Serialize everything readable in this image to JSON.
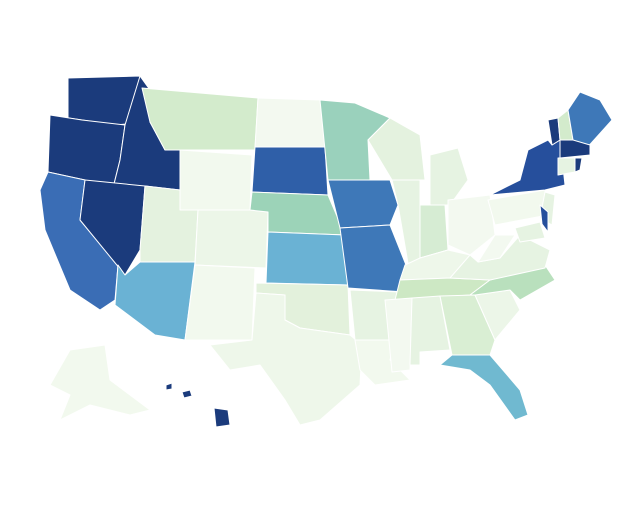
{
  "map": {
    "background": "#ffffff",
    "border_color": "#ffffff",
    "regions": [
      {
        "color": "#1b3b7c"
      },
      {
        "color": "#1b3b7c"
      },
      {
        "color": "#1b3b7c"
      },
      {
        "color": "#3a6db5"
      },
      {
        "color": "#1b3b7c"
      },
      {
        "color": "#d3ebcc"
      },
      {
        "color": "#f2f9ee"
      },
      {
        "color": "#e4f2df"
      },
      {
        "color": "#6ab2d4"
      },
      {
        "color": "#ecf6e8"
      },
      {
        "color": "#f2f9ee"
      },
      {
        "color": "#f3f9f0"
      },
      {
        "color": "#2f5fa8"
      },
      {
        "color": "#9cd3b8"
      },
      {
        "color": "#6ab2d4"
      },
      {
        "color": "#e3f1dc"
      },
      {
        "color": "#eef7ea"
      },
      {
        "color": "#9ad1bc"
      },
      {
        "color": "#3e78b8"
      },
      {
        "color": "#3e78b8"
      },
      {
        "color": "#e6f3e2"
      },
      {
        "color": "#f2f9ee"
      },
      {
        "color": "#e4f2df"
      },
      {
        "color": "#e6f3e2"
      },
      {
        "color": "#e6f3e2"
      },
      {
        "color": "#d6ecd3"
      },
      {
        "color": "#f3f9f0"
      },
      {
        "color": "#eef7ea"
      },
      {
        "color": "#cde8c4"
      },
      {
        "color": "#f3f9f0"
      },
      {
        "color": "#e6f3e2"
      },
      {
        "color": "#d9eed3"
      },
      {
        "color": "#70b9d0"
      },
      {
        "color": "#ecf6e8"
      },
      {
        "color": "#b9e0bd"
      },
      {
        "color": "#e6f3e2"
      },
      {
        "color": "#f3f9f0"
      },
      {
        "color": "#f2f9ee"
      },
      {
        "color": "#264f9c"
      },
      {
        "color": "#1b3b7c"
      },
      {
        "color": "#d3ebcc"
      },
      {
        "color": "#3e78b8"
      },
      {
        "color": "#1b3b7c"
      },
      {
        "color": "#e6f3e2"
      },
      {
        "color": "#1b3b7c"
      },
      {
        "color": "#e6f3e2"
      },
      {
        "color": "#e6f3e2"
      },
      {
        "color": "#264f9c"
      },
      {
        "color": "#f2f9ee"
      },
      {
        "color": "#1b3b7c"
      },
      {
        "color": "#1b3b7c"
      },
      {
        "color": "#1b3b7c"
      }
    ]
  }
}
